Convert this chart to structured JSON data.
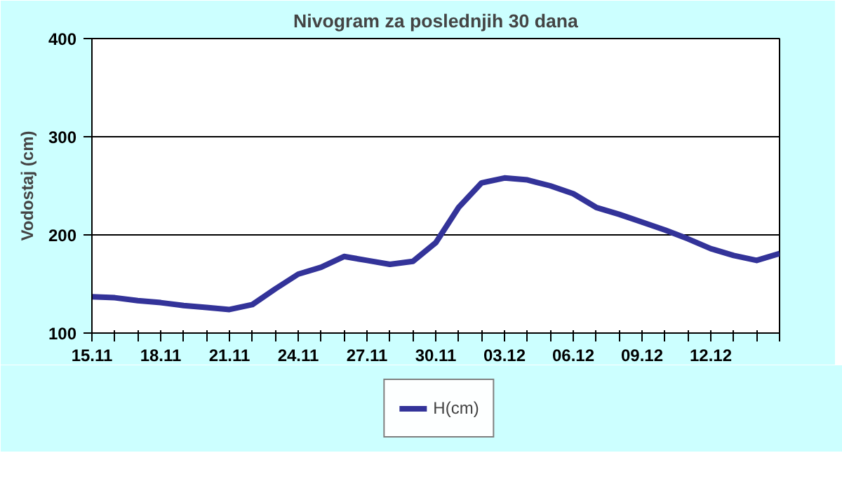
{
  "chart_data": {
    "type": "line",
    "title": "Nivogram za poslednjih 30 dana",
    "ylabel": "Vodostaj (cm)",
    "categories": [
      "15.11",
      null,
      null,
      "18.11",
      null,
      null,
      "21.11",
      null,
      null,
      "24.11",
      null,
      null,
      "27.11",
      null,
      null,
      "30.11",
      null,
      null,
      "03.12",
      null,
      null,
      "06.12",
      null,
      null,
      "09.12",
      null,
      null,
      "12.12",
      null,
      null,
      null
    ],
    "series": [
      {
        "name": "H(cm)",
        "color": "#333399",
        "values": [
          137,
          136,
          133,
          131,
          128,
          126,
          124,
          129,
          145,
          160,
          167,
          178,
          174,
          170,
          173,
          192,
          228,
          253,
          258,
          256,
          250,
          242,
          228,
          221,
          213,
          205,
          196,
          186,
          179,
          174,
          181
        ]
      }
    ],
    "ylim": [
      100,
      400
    ],
    "yticks": [
      100,
      200,
      300,
      400
    ],
    "grid": "y",
    "legend": "bottom",
    "marker": "none",
    "line_style": "solid"
  }
}
